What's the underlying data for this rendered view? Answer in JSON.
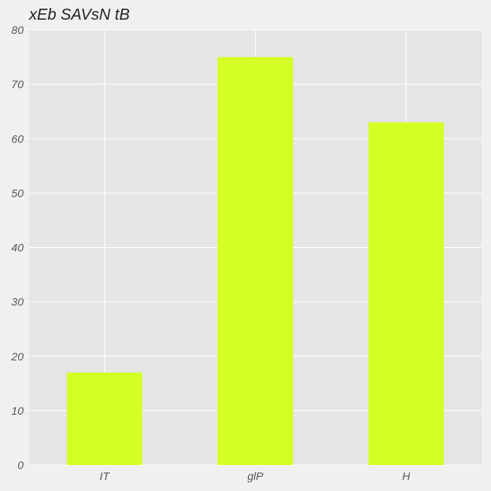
{
  "chart_data": {
    "type": "bar",
    "title": "xEb SAVsN tB",
    "categories": [
      "IT",
      "glP",
      "H"
    ],
    "values": [
      17,
      75,
      63
    ],
    "ylim": [
      0,
      80
    ],
    "yticks": [
      0,
      10,
      20,
      30,
      40,
      50,
      60,
      70,
      80
    ],
    "xlabel": "",
    "ylabel": "",
    "grid": true,
    "colors": {
      "bar": "#d3ff24",
      "plot_background": "#e5e5e5",
      "page_background": "#f0f0f0",
      "grid": "#ffffff"
    }
  }
}
